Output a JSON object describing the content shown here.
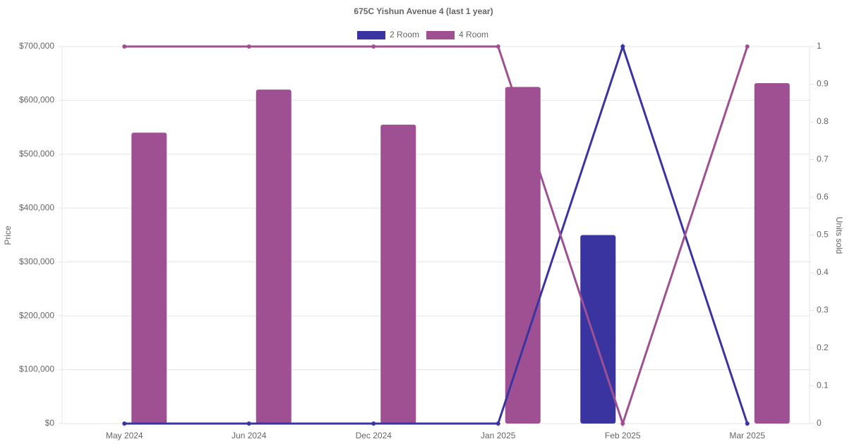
{
  "chart_data": {
    "type": "bar-line",
    "title": "675C Yishun Avenue 4 (last 1 year)",
    "y_label": "Price",
    "y2_label": "Units sold",
    "categories": [
      "May 2024",
      "Jun 2024",
      "Dec 2024",
      "Jan 2025",
      "Feb 2025",
      "Mar 2025"
    ],
    "series": [
      {
        "name": "2 Room",
        "color": "#3a34a0",
        "values": [
          null,
          null,
          null,
          null,
          350000,
          null
        ]
      },
      {
        "name": "4 Room",
        "color": "#9f5093",
        "values": [
          540000,
          620000,
          555000,
          625000,
          null,
          632000
        ]
      }
    ],
    "line_series": [
      {
        "color": "#3a34a0",
        "axis": "y2",
        "values": [
          0,
          0,
          0,
          0,
          1,
          0
        ]
      },
      {
        "color": "#9f5093",
        "axis": "y2",
        "values": [
          1,
          1,
          1,
          1,
          0,
          1
        ]
      }
    ],
    "ylim": [
      0,
      700000
    ],
    "yticks": [
      {
        "value": 0,
        "label": "$0"
      },
      {
        "value": 100000,
        "label": "$100,000"
      },
      {
        "value": 200000,
        "label": "$200,000"
      },
      {
        "value": 300000,
        "label": "$300,000"
      },
      {
        "value": 400000,
        "label": "$400,000"
      },
      {
        "value": 500000,
        "label": "$500,000"
      },
      {
        "value": 600000,
        "label": "$600,000"
      },
      {
        "value": 700000,
        "label": "$700,000"
      }
    ],
    "y2lim": [
      0,
      1
    ],
    "y2ticks": [
      0,
      0.1,
      0.2,
      0.3,
      0.4,
      0.5,
      0.6,
      0.7,
      0.8,
      0.9,
      1
    ],
    "grid": true,
    "legend": "top"
  }
}
